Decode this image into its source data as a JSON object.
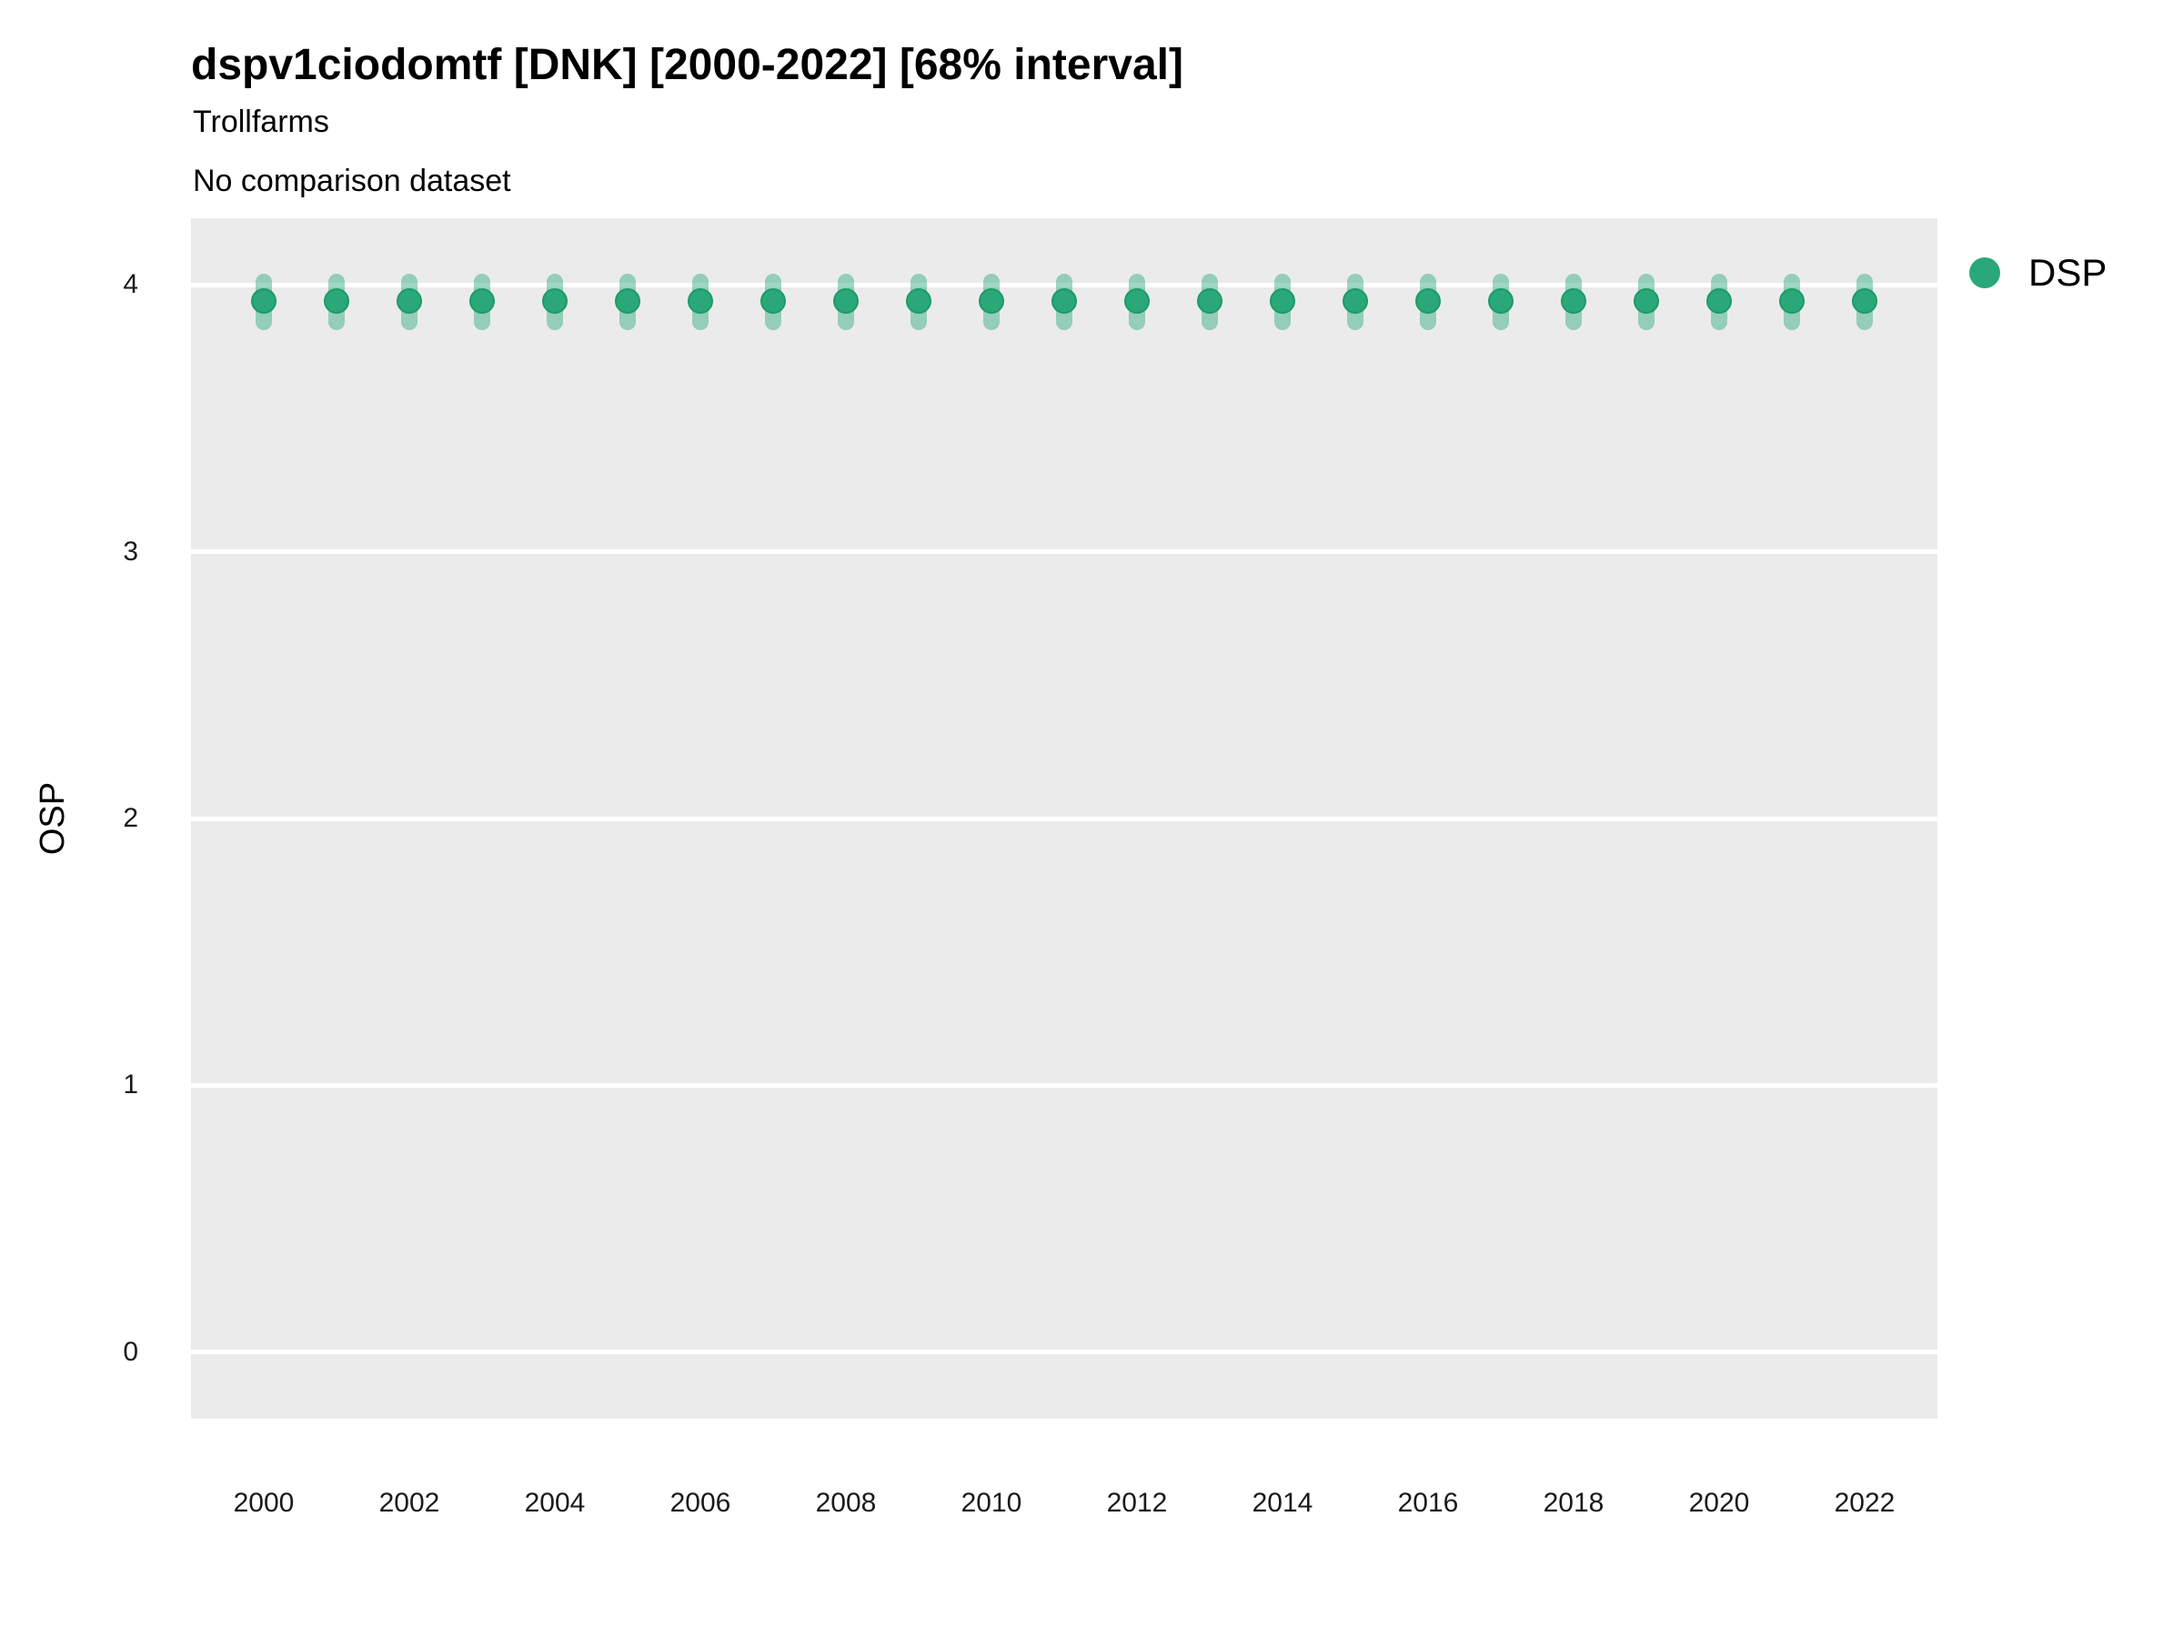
{
  "header": {
    "title": "dspv1ciodomtf [DNK] [2000-2022] [68% interval]",
    "subtitle1": "Trollfarms",
    "subtitle2": "No comparison dataset"
  },
  "chart_data": {
    "type": "scatter",
    "title": "dspv1ciodomtf [DNK] [2000-2022] [68% interval]",
    "subtitle_lines": [
      "Trollfarms",
      "No comparison dataset"
    ],
    "xlabel": "",
    "ylabel": "OSP",
    "x_domain": [
      1999,
      2023
    ],
    "y_domain": [
      -0.25,
      4.25
    ],
    "x_ticks": [
      2000,
      2002,
      2004,
      2006,
      2008,
      2010,
      2012,
      2014,
      2016,
      2018,
      2020,
      2022
    ],
    "y_ticks": [
      0,
      1,
      2,
      3,
      4
    ],
    "grid": "horizontal-major-only",
    "panel_bg": "#ebebeb",
    "grid_color": "#ffffff",
    "legend": {
      "position": "right",
      "entries": [
        {
          "label": "DSP",
          "color": "#2aa87a"
        }
      ]
    },
    "series": [
      {
        "name": "DSP",
        "color": "#2aa87a",
        "point_edge_color": "#1d9a6a",
        "errorbar_alpha": 0.45,
        "interval_label": "68% interval",
        "x": [
          2000,
          2001,
          2002,
          2003,
          2004,
          2005,
          2006,
          2007,
          2008,
          2009,
          2010,
          2011,
          2012,
          2013,
          2014,
          2015,
          2016,
          2017,
          2018,
          2019,
          2020,
          2021,
          2022
        ],
        "y": [
          3.94,
          3.94,
          3.94,
          3.94,
          3.94,
          3.94,
          3.94,
          3.94,
          3.94,
          3.94,
          3.94,
          3.94,
          3.94,
          3.94,
          3.94,
          3.94,
          3.94,
          3.94,
          3.94,
          3.94,
          3.94,
          3.94,
          3.94
        ],
        "y_lo": [
          3.86,
          3.86,
          3.86,
          3.86,
          3.86,
          3.86,
          3.86,
          3.86,
          3.86,
          3.86,
          3.86,
          3.86,
          3.86,
          3.86,
          3.86,
          3.86,
          3.86,
          3.86,
          3.86,
          3.86,
          3.86,
          3.86,
          3.86
        ],
        "y_hi": [
          4.01,
          4.01,
          4.01,
          4.01,
          4.01,
          4.01,
          4.01,
          4.01,
          4.01,
          4.01,
          4.01,
          4.01,
          4.01,
          4.01,
          4.01,
          4.01,
          4.01,
          4.01,
          4.01,
          4.01,
          4.01,
          4.01,
          4.01
        ]
      }
    ]
  }
}
